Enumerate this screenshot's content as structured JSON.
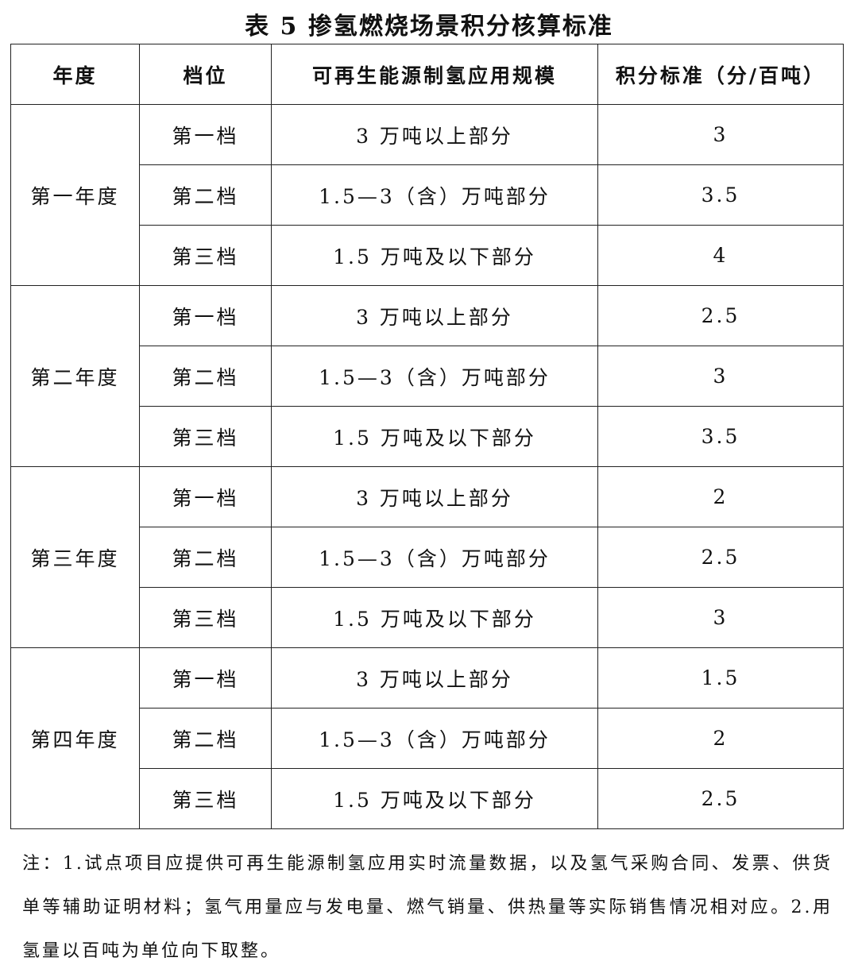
{
  "title": "表 5  掺氢燃烧场景积分核算标准",
  "headers": [
    "年度",
    "档位",
    "可再生能源制氢应用规模",
    "积分标准（分/百吨）"
  ],
  "groups": [
    {
      "year": "第一年度",
      "rows": [
        {
          "tier": "第一档",
          "scale": "3 万吨以上部分",
          "score": "3"
        },
        {
          "tier": "第二档",
          "scale": "1.5—3（含）万吨部分",
          "score": "3.5"
        },
        {
          "tier": "第三档",
          "scale": "1.5 万吨及以下部分",
          "score": "4"
        }
      ]
    },
    {
      "year": "第二年度",
      "rows": [
        {
          "tier": "第一档",
          "scale": "3 万吨以上部分",
          "score": "2.5"
        },
        {
          "tier": "第二档",
          "scale": "1.5—3（含）万吨部分",
          "score": "3"
        },
        {
          "tier": "第三档",
          "scale": "1.5 万吨及以下部分",
          "score": "3.5"
        }
      ]
    },
    {
      "year": "第三年度",
      "rows": [
        {
          "tier": "第一档",
          "scale": "3 万吨以上部分",
          "score": "2"
        },
        {
          "tier": "第二档",
          "scale": "1.5—3（含）万吨部分",
          "score": "2.5"
        },
        {
          "tier": "第三档",
          "scale": "1.5 万吨及以下部分",
          "score": "3"
        }
      ]
    },
    {
      "year": "第四年度",
      "rows": [
        {
          "tier": "第一档",
          "scale": "3 万吨以上部分",
          "score": "1.5"
        },
        {
          "tier": "第二档",
          "scale": "1.5—3（含）万吨部分",
          "score": "2"
        },
        {
          "tier": "第三档",
          "scale": "1.5 万吨及以下部分",
          "score": "2.5"
        }
      ]
    }
  ],
  "note": "注：1.试点项目应提供可再生能源制氢应用实时流量数据，以及氢气采购合同、发票、供货单等辅助证明材料；氢气用量应与发电量、燃气销量、供热量等实际销售情况相对应。2.用氢量以百吨为单位向下取整。"
}
